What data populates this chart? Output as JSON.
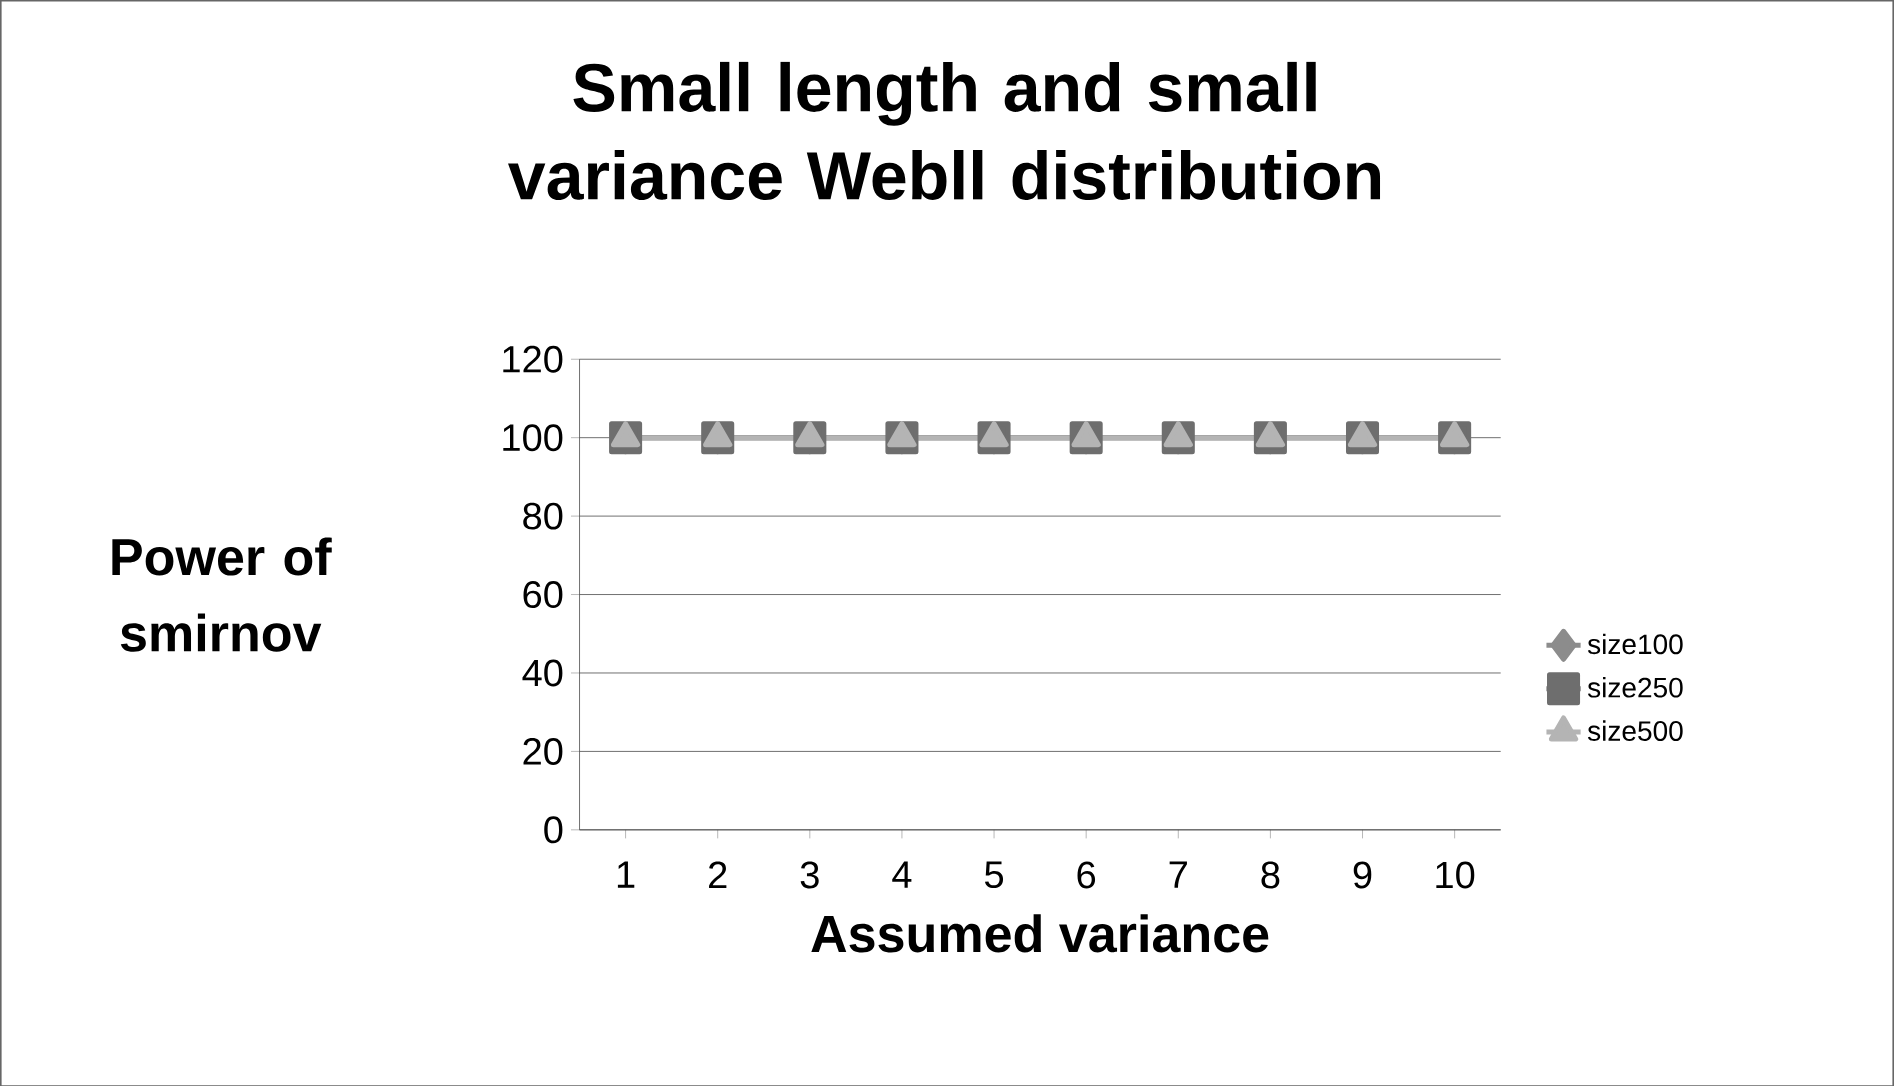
{
  "chart_data": {
    "type": "line",
    "title": "Small length and small variance Webll distribution",
    "xlabel": "Assumed  variance",
    "ylabel": "Power of smirnov",
    "categories": [
      "1",
      "2",
      "3",
      "4",
      "5",
      "6",
      "7",
      "8",
      "9",
      "10"
    ],
    "series": [
      {
        "name": "size100",
        "color": "#8c8c8c",
        "marker": "diamond",
        "values": [
          100,
          100,
          100,
          100,
          100,
          100,
          100,
          100,
          100,
          100
        ]
      },
      {
        "name": "size250",
        "color": "#6e6e6e",
        "marker": "square",
        "values": [
          100,
          100,
          100,
          100,
          100,
          100,
          100,
          100,
          100,
          100
        ]
      },
      {
        "name": "size500",
        "color": "#b4b4b4",
        "marker": "triangle",
        "values": [
          100,
          100,
          100,
          100,
          100,
          100,
          100,
          100,
          100,
          100
        ]
      }
    ],
    "ylim": [
      0,
      120
    ],
    "yticks": [
      0,
      20,
      40,
      60,
      80,
      100,
      120
    ],
    "grid": "y",
    "legend": "right",
    "line_style": "solid"
  }
}
